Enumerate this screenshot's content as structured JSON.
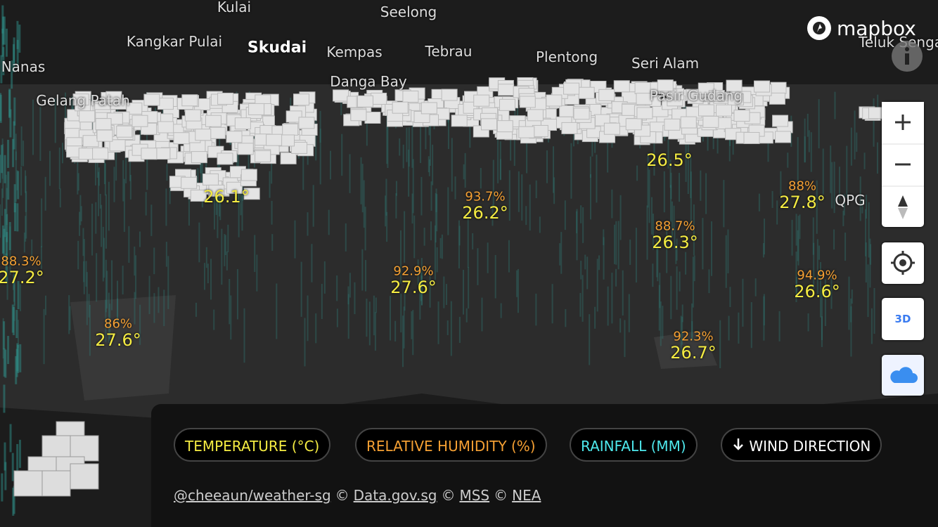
{
  "map": {
    "places": [
      "Kulai",
      "Seelong",
      "Kangkar Pulai",
      "Skudai",
      "Kempas",
      "Tebrau",
      "Plentong",
      "Seri Alam",
      "Teluk Sengat",
      "Nanas",
      "Gelang Patah",
      "Danga Bay",
      "Pasir Gudang",
      "QPG"
    ],
    "stations": [
      {
        "humidity": "88.3%",
        "temperature": "27.2°"
      },
      {
        "humidity": "86%",
        "temperature": "27.6°"
      },
      {
        "temperature": "26.1°"
      },
      {
        "humidity": "93.7%",
        "temperature": "26.2°"
      },
      {
        "humidity": "92.9%",
        "temperature": "27.6°"
      },
      {
        "temperature": "26.5°"
      },
      {
        "humidity": "88.7%",
        "temperature": "26.3°"
      },
      {
        "humidity": "88%",
        "temperature": "27.8°"
      },
      {
        "humidity": "94.9%",
        "temperature": "26.6°"
      },
      {
        "humidity": "92.3%",
        "temperature": "26.7°"
      }
    ],
    "logo": "mapbox",
    "controls": {
      "three_d": "3D"
    }
  },
  "legend": {
    "items": [
      "TEMPERATURE (°C)",
      "RELATIVE HUMIDITY (%)",
      "RAINFALL (MM)",
      "WIND DIRECTION"
    ],
    "attribution": [
      "@cheeaun/weather-sg",
      "©",
      "Data.gov.sg",
      "©",
      "MSS",
      "©",
      "NEA"
    ]
  }
}
